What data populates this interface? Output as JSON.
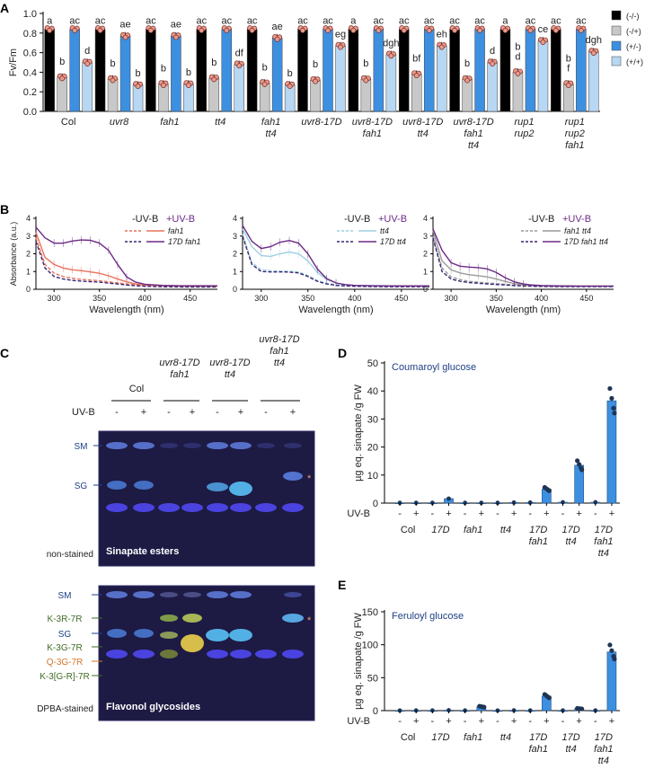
{
  "panel_labels": {
    "a": "A",
    "b": "B",
    "c": "C",
    "d": "D",
    "e": "E"
  },
  "chart_data": [
    {
      "panel": "A",
      "type": "bar",
      "ylabel": "Fv/Fm",
      "ylim": [
        0,
        1.0
      ],
      "yticks": [
        "0.0",
        "0.2",
        "0.4",
        "0.6",
        "0.8",
        "1.0"
      ],
      "legend_placement": "right",
      "series": [
        {
          "name": "(-/-)",
          "color": "#000000"
        },
        {
          "name": "(-/+)",
          "color": "#c8c8c8"
        },
        {
          "name": "(+/-)",
          "color": "#3d8fe0"
        },
        {
          "name": "(+/+)",
          "color": "#b7d7f3"
        }
      ],
      "groups": [
        {
          "label": [
            "Col"
          ],
          "values": [
            0.84,
            0.35,
            0.84,
            0.5
          ],
          "letters": [
            "a",
            "b",
            "ac",
            "d"
          ]
        },
        {
          "label": [
            "uvr8"
          ],
          "values": [
            0.84,
            0.33,
            0.77,
            0.27
          ],
          "letters": [
            "ac",
            "b",
            "ae",
            "b"
          ]
        },
        {
          "label": [
            "fah1"
          ],
          "values": [
            0.84,
            0.28,
            0.77,
            0.28
          ],
          "letters": [
            "ac",
            "b",
            "ae",
            "b"
          ]
        },
        {
          "label": [
            "tt4"
          ],
          "values": [
            0.84,
            0.34,
            0.84,
            0.48
          ],
          "letters": [
            "ac",
            "b",
            "ac",
            "df"
          ]
        },
        {
          "label": [
            "fah1",
            "tt4"
          ],
          "values": [
            0.84,
            0.29,
            0.75,
            0.27
          ],
          "letters": [
            "ac",
            "b",
            "ae",
            "b"
          ]
        },
        {
          "label": [
            "uvr8-17D"
          ],
          "values": [
            0.84,
            0.32,
            0.84,
            0.67
          ],
          "letters": [
            "ac",
            "b",
            "ac",
            "eg"
          ]
        },
        {
          "label": [
            "uvr8-17D",
            "fah1"
          ],
          "values": [
            0.84,
            0.33,
            0.84,
            0.58
          ],
          "letters": [
            "a",
            "b",
            "ac",
            "dgh"
          ]
        },
        {
          "label": [
            "uvr8-17D",
            "tt4"
          ],
          "values": [
            0.84,
            0.38,
            0.84,
            0.67
          ],
          "letters": [
            "ac",
            "bf",
            "ac",
            "eh"
          ]
        },
        {
          "label": [
            "uvr8-17D",
            "fah1",
            "tt4"
          ],
          "values": [
            0.84,
            0.33,
            0.84,
            0.5
          ],
          "letters": [
            "ac",
            "b",
            "ac",
            "d"
          ]
        },
        {
          "label": [
            "rup1",
            "rup2"
          ],
          "values": [
            0.84,
            0.4,
            0.84,
            0.72
          ],
          "letters": [
            "a",
            "b d",
            "ac",
            "ce"
          ]
        },
        {
          "label": [
            "rup1",
            "rup2",
            "fah1"
          ],
          "values": [
            0.84,
            0.28,
            0.84,
            0.61
          ],
          "letters": [
            "ac",
            "b f",
            "ac",
            "dgh"
          ]
        }
      ]
    },
    {
      "panel": "B1",
      "type": "line",
      "xlabel": "Wavelength (nm)",
      "ylabel": "Absorbance (a.u.)",
      "xlim": [
        280,
        480
      ],
      "ylim": [
        0,
        4
      ],
      "xticks": [
        "300",
        "350",
        "400",
        "450"
      ],
      "yticks": [
        "0",
        "1",
        "2",
        "3",
        "4"
      ],
      "legend_header": {
        "minus": "-UV-B",
        "plus": "+UV-B"
      },
      "series": [
        {
          "name": "fah1",
          "treatment": "-UV-B",
          "color": "#e8725c",
          "dashed": true,
          "x": [
            280,
            290,
            300,
            310,
            320,
            330,
            340,
            350,
            360,
            370,
            380,
            390,
            400,
            420,
            440,
            460,
            480
          ],
          "y": [
            2.9,
            1.4,
            0.9,
            0.72,
            0.62,
            0.56,
            0.52,
            0.48,
            0.42,
            0.36,
            0.3,
            0.26,
            0.23,
            0.2,
            0.18,
            0.18,
            0.17
          ]
        },
        {
          "name": "fah1",
          "treatment": "+UV-B",
          "color": "#e8725c",
          "dashed": false,
          "x": [
            280,
            290,
            300,
            310,
            320,
            330,
            340,
            350,
            360,
            370,
            380,
            390,
            400,
            420,
            440,
            460,
            480
          ],
          "y": [
            3.2,
            1.8,
            1.4,
            1.2,
            1.1,
            1.05,
            0.98,
            0.9,
            0.76,
            0.58,
            0.42,
            0.3,
            0.24,
            0.2,
            0.18,
            0.17,
            0.17
          ]
        },
        {
          "name": "17D fah1",
          "treatment": "-UV-B",
          "color": "#3a2672",
          "dashed": true,
          "x": [
            280,
            290,
            300,
            310,
            320,
            330,
            340,
            350,
            360,
            370,
            380,
            390,
            400,
            420,
            440,
            460,
            480
          ],
          "y": [
            2.7,
            1.2,
            0.72,
            0.58,
            0.5,
            0.46,
            0.43,
            0.4,
            0.35,
            0.3,
            0.24,
            0.2,
            0.17,
            0.14,
            0.13,
            0.13,
            0.13
          ]
        },
        {
          "name": "17D fah1",
          "treatment": "+UV-B",
          "color": "#6b2a86",
          "dashed": false,
          "x": [
            280,
            290,
            300,
            310,
            320,
            330,
            340,
            350,
            360,
            370,
            380,
            390,
            400,
            420,
            440,
            460,
            480
          ],
          "y": [
            3.5,
            2.9,
            2.6,
            2.6,
            2.72,
            2.78,
            2.76,
            2.6,
            2.2,
            1.4,
            0.7,
            0.4,
            0.28,
            0.22,
            0.2,
            0.2,
            0.2
          ]
        }
      ]
    },
    {
      "panel": "B2",
      "type": "line",
      "xlabel": "Wavelength (nm)",
      "xlim": [
        280,
        480
      ],
      "ylim": [
        0,
        4
      ],
      "xticks": [
        "300",
        "350",
        "400",
        "450"
      ],
      "yticks": [
        "0",
        "1",
        "2",
        "3",
        "4"
      ],
      "legend_header": {
        "minus": "-UV-B",
        "plus": "+UV-B"
      },
      "series": [
        {
          "name": "tt4",
          "treatment": "-UV-B",
          "color": "#9fd0e0",
          "dashed": true,
          "x": [
            280,
            290,
            300,
            310,
            320,
            330,
            340,
            350,
            360,
            370,
            380,
            390,
            400,
            420,
            440,
            460,
            480
          ],
          "y": [
            3.1,
            1.5,
            1.1,
            1.05,
            1.04,
            1.02,
            0.98,
            0.78,
            0.5,
            0.34,
            0.26,
            0.22,
            0.2,
            0.18,
            0.17,
            0.17,
            0.17
          ]
        },
        {
          "name": "tt4",
          "treatment": "+UV-B",
          "color": "#9fd0e0",
          "dashed": false,
          "x": [
            280,
            290,
            300,
            310,
            320,
            330,
            340,
            350,
            360,
            370,
            380,
            390,
            400,
            420,
            440,
            460,
            480
          ],
          "y": [
            3.4,
            2.4,
            1.9,
            1.85,
            2.0,
            2.1,
            2.0,
            1.6,
            0.95,
            0.55,
            0.35,
            0.26,
            0.22,
            0.2,
            0.19,
            0.19,
            0.19
          ]
        },
        {
          "name": "17D tt4",
          "treatment": "-UV-B",
          "color": "#3a2672",
          "dashed": true,
          "x": [
            280,
            290,
            300,
            310,
            320,
            330,
            340,
            350,
            360,
            370,
            380,
            390,
            400,
            420,
            440,
            460,
            480
          ],
          "y": [
            3.0,
            1.4,
            1.0,
            0.98,
            0.98,
            0.97,
            0.92,
            0.72,
            0.45,
            0.3,
            0.22,
            0.19,
            0.17,
            0.15,
            0.14,
            0.14,
            0.14
          ]
        },
        {
          "name": "17D tt4",
          "treatment": "+UV-B",
          "color": "#6b2a86",
          "dashed": false,
          "x": [
            280,
            290,
            300,
            310,
            320,
            330,
            340,
            350,
            360,
            370,
            380,
            390,
            400,
            420,
            440,
            460,
            480
          ],
          "y": [
            3.6,
            2.7,
            2.3,
            2.4,
            2.65,
            2.75,
            2.6,
            2.0,
            1.15,
            0.6,
            0.36,
            0.26,
            0.22,
            0.2,
            0.19,
            0.19,
            0.19
          ]
        }
      ]
    },
    {
      "panel": "B3",
      "type": "line",
      "xlabel": "Wavelength (nm)",
      "xlim": [
        280,
        480
      ],
      "ylim": [
        0,
        4
      ],
      "xticks": [
        "300",
        "350",
        "400",
        "450"
      ],
      "yticks": [
        "0",
        "1",
        "2",
        "3",
        "4"
      ],
      "legend_header": {
        "minus": "-UV-B",
        "plus": "+UV-B"
      },
      "series": [
        {
          "name": "fah1 tt4",
          "treatment": "-UV-B",
          "color": "#9a9a9a",
          "dashed": true,
          "x": [
            280,
            290,
            300,
            310,
            320,
            330,
            340,
            350,
            360,
            370,
            380,
            390,
            400,
            420,
            440,
            460,
            480
          ],
          "y": [
            3.0,
            1.2,
            0.7,
            0.55,
            0.45,
            0.4,
            0.36,
            0.32,
            0.28,
            0.24,
            0.21,
            0.19,
            0.18,
            0.17,
            0.16,
            0.16,
            0.16
          ]
        },
        {
          "name": "fah1 tt4",
          "treatment": "+UV-B",
          "color": "#9a9a9a",
          "dashed": false,
          "x": [
            280,
            290,
            300,
            310,
            320,
            330,
            340,
            350,
            360,
            370,
            380,
            390,
            400,
            420,
            440,
            460,
            480
          ],
          "y": [
            3.3,
            1.6,
            1.1,
            0.92,
            0.82,
            0.76,
            0.7,
            0.58,
            0.44,
            0.32,
            0.25,
            0.22,
            0.2,
            0.19,
            0.18,
            0.18,
            0.18
          ]
        },
        {
          "name": "17D fah1 tt4",
          "treatment": "-UV-B",
          "color": "#3a2672",
          "dashed": true,
          "x": [
            280,
            290,
            300,
            310,
            320,
            330,
            340,
            350,
            360,
            370,
            380,
            390,
            400,
            420,
            440,
            460,
            480
          ],
          "y": [
            2.9,
            1.0,
            0.58,
            0.45,
            0.38,
            0.34,
            0.3,
            0.27,
            0.24,
            0.21,
            0.19,
            0.17,
            0.16,
            0.15,
            0.15,
            0.15,
            0.15
          ]
        },
        {
          "name": "17D fah1 tt4",
          "treatment": "+UV-B",
          "color": "#6b2a86",
          "dashed": false,
          "x": [
            280,
            290,
            300,
            310,
            320,
            330,
            340,
            350,
            360,
            370,
            380,
            390,
            400,
            420,
            440,
            460,
            480
          ],
          "y": [
            3.4,
            2.2,
            1.5,
            1.3,
            1.25,
            1.22,
            1.15,
            0.95,
            0.65,
            0.42,
            0.3,
            0.24,
            0.21,
            0.19,
            0.18,
            0.18,
            0.18
          ]
        }
      ]
    },
    {
      "panel": "D",
      "type": "bar",
      "title": "Coumaroyl glucose",
      "ylabel": "µg eq. sinapate /g FW",
      "ylim": [
        0,
        50
      ],
      "yticks": [
        "0",
        "10",
        "20",
        "30",
        "40",
        "50"
      ],
      "uvb_label": "UV-B",
      "uvb_marks": [
        "-",
        "+"
      ],
      "genotypes": [
        [
          "Col"
        ],
        [
          "17D"
        ],
        [
          "fah1"
        ],
        [
          "tt4"
        ],
        [
          "17D",
          "fah1"
        ],
        [
          "17D",
          "tt4"
        ],
        [
          "17D",
          "fah1",
          "tt4"
        ]
      ],
      "values": [
        0.1,
        0.1,
        0.1,
        1.6,
        0.1,
        0.1,
        0.1,
        0.2,
        0.2,
        5.0,
        0.3,
        13.5,
        0.3,
        36.5
      ]
    },
    {
      "panel": "E",
      "type": "bar",
      "title": "Feruloyl glucose",
      "ylabel": "µg eq. sinapate /g FW",
      "ylim": [
        0,
        150
      ],
      "yticks": [
        "0",
        "50",
        "100",
        "150"
      ],
      "uvb_label": "UV-B",
      "uvb_marks": [
        "-",
        "+"
      ],
      "genotypes": [
        [
          "Col"
        ],
        [
          "17D"
        ],
        [
          "fah1"
        ],
        [
          "tt4"
        ],
        [
          "17D",
          "fah1"
        ],
        [
          "17D",
          "tt4"
        ],
        [
          "17D",
          "fah1",
          "tt4"
        ]
      ],
      "values": [
        0.2,
        0.3,
        0.3,
        0.6,
        0.3,
        6.0,
        0.2,
        0.4,
        0.3,
        22.0,
        0.3,
        3.0,
        0.3,
        89.0
      ]
    }
  ],
  "tlc": {
    "genotypes": [
      [
        "Col"
      ],
      [
        "uvr8-17D",
        "fah1"
      ],
      [
        "uvr8-17D",
        "tt4"
      ],
      [
        "uvr8-17D",
        "fah1",
        "tt4"
      ]
    ],
    "uvb_label": "UV-B",
    "uvb_marks": [
      "-",
      "+"
    ],
    "top_bands": [
      {
        "text": "SM",
        "color": "#1f3f86"
      },
      {
        "text": "SG",
        "color": "#1f3f86"
      }
    ],
    "top_caption_left": "non-stained",
    "top_caption_right": "Sinapate esters",
    "bottom_bands": [
      {
        "text": "SM",
        "color": "#1f3f86"
      },
      {
        "text": "K-3R-7R",
        "color": "#3f6b25"
      },
      {
        "text": "SG",
        "color": "#1f3f86"
      },
      {
        "text": "K-3G-7R",
        "color": "#3f6b25"
      },
      {
        "text": "Q-3G-7R",
        "color": "#d3762a"
      },
      {
        "text": "K-3[G-R]-7R",
        "color": "#3f6b25"
      }
    ],
    "bottom_caption_left": "DPBA-stained",
    "bottom_caption_right": "Flavonol glycosides",
    "star": "*"
  }
}
